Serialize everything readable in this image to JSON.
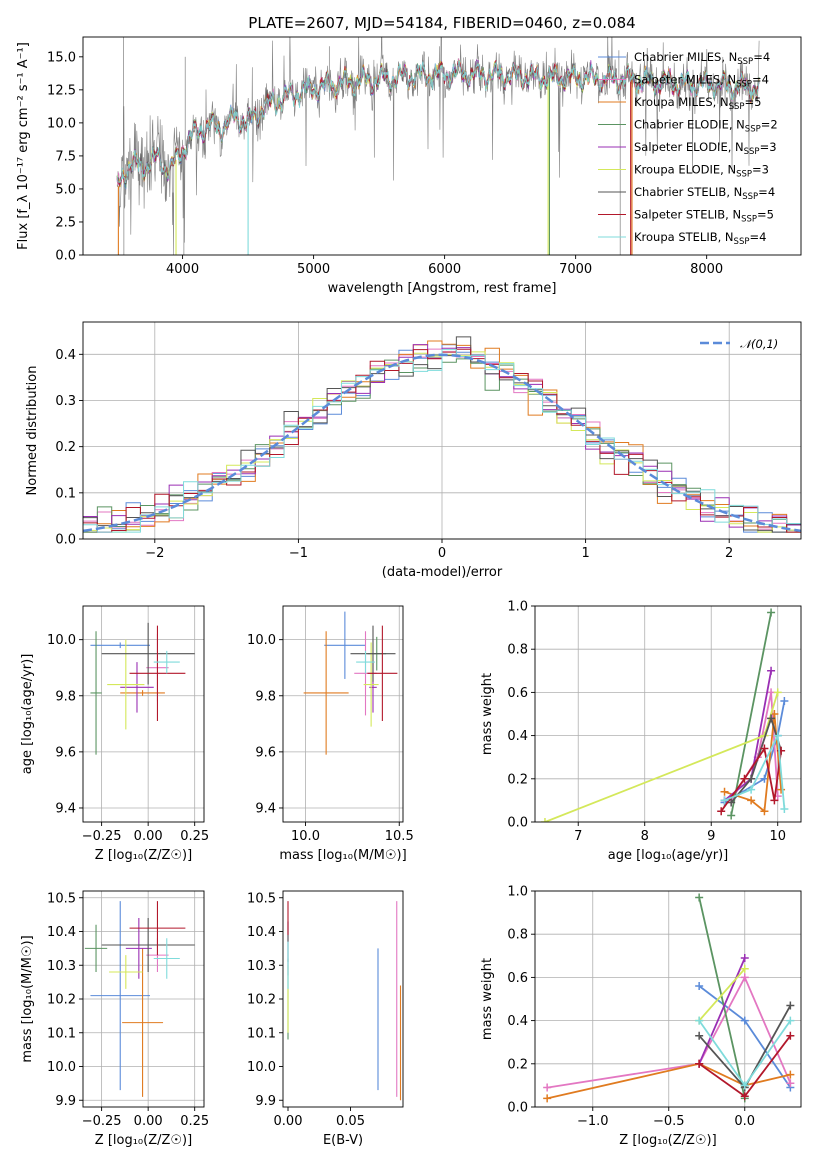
{
  "colors": {
    "Chabrier MILES": "#5b8bd9",
    "Salpeter MILES": "#e377c2",
    "Kroupa MILES": "#e07b20",
    "Chabrier ELODIE": "#5b9462",
    "Salpeter ELODIE": "#9a2fb4",
    "Kroupa ELODIE": "#d4e85a",
    "Chabrier STELIB": "#555555",
    "Salpeter STELIB": "#b2182b",
    "Kroupa STELIB": "#7fdbdb",
    "observed": "#808080",
    "gaussian": "#5b8bd9"
  },
  "chart_data": [
    {
      "id": "spectrum",
      "type": "line",
      "title": "PLATE=2607, MJD=54184, FIBERID=0460, z=0.084",
      "xlabel": "wavelength [Angstrom, rest frame]",
      "ylabel": "Flux [f_λ 10⁻¹⁷ erg cm⁻² s⁻¹ A⁻¹]",
      "xlim": [
        3240,
        8720
      ],
      "ylim": [
        0,
        16.5
      ],
      "xticks": [
        4000,
        5000,
        6000,
        7000,
        8000
      ],
      "yticks": [
        0.0,
        2.5,
        5.0,
        7.5,
        10.0,
        12.5,
        15.0
      ],
      "legend_position": "right",
      "continuum": {
        "x": [
          3500,
          3600,
          3700,
          3800,
          3900,
          4000,
          4100,
          4200,
          4300,
          4400,
          4500,
          4600,
          4700,
          4800,
          4900,
          5000,
          5200,
          5400,
          5600,
          5800,
          6000,
          6200,
          6400,
          6600,
          6800,
          7000,
          7200,
          7400,
          7600,
          7800,
          8000,
          8200,
          8400
        ],
        "y": [
          5.0,
          7.0,
          6.6,
          7.4,
          6.4,
          8.0,
          9.3,
          9.8,
          9.6,
          10.5,
          10.0,
          11.0,
          11.6,
          12.0,
          12.4,
          12.6,
          13.0,
          13.2,
          13.4,
          13.6,
          13.7,
          13.7,
          13.6,
          13.5,
          13.4,
          13.4,
          13.3,
          13.3,
          13.1,
          13.0,
          12.9,
          12.8,
          12.6
        ]
      },
      "series": [
        {
          "name": "Chabrier MILES",
          "nssp": "4"
        },
        {
          "name": "Salpeter MILES",
          "nssp": "4"
        },
        {
          "name": "Kroupa MILES",
          "nssp": "5"
        },
        {
          "name": "Chabrier ELODIE",
          "nssp": "2"
        },
        {
          "name": "Salpeter ELODIE",
          "nssp": "3"
        },
        {
          "name": "Kroupa ELODIE",
          "nssp": "3"
        },
        {
          "name": "Chabrier STELIB",
          "nssp": "4"
        },
        {
          "name": "Salpeter STELIB",
          "nssp": "5"
        },
        {
          "name": "Kroupa STELIB",
          "nssp": "4"
        }
      ]
    },
    {
      "id": "residuals",
      "type": "histogram",
      "xlabel": "(data-model)/error",
      "ylabel": "Normed distribution",
      "xlim": [
        -2.5,
        2.5
      ],
      "ylim": [
        0,
        0.47
      ],
      "xticks": [
        -2,
        -1,
        0,
        1,
        2
      ],
      "yticks": [
        0.0,
        0.1,
        0.2,
        0.3,
        0.4
      ],
      "legend": "𝒩(0,1)",
      "legend_position": "top-right",
      "bins": {
        "start": -2.5,
        "width": 0.1,
        "count": 50
      },
      "grid": true
    },
    {
      "id": "age_vs_Z",
      "type": "errorbar",
      "xlabel": "Z [log₁₀(Z/Z☉)]",
      "ylabel": "age  [log₁₀(age/yr)]",
      "xlim": [
        -0.35,
        0.3
      ],
      "ylim": [
        9.35,
        10.12
      ],
      "xticks": [
        -0.25,
        0.0,
        0.25
      ],
      "xticklabels": [
        "−0.25",
        "0.00",
        "0.25"
      ],
      "yticks": [
        9.4,
        9.6,
        9.8,
        10.0
      ],
      "grid": true,
      "points": [
        {
          "name": "Chabrier MILES",
          "x": -0.15,
          "xerr": 0.16,
          "y": 9.98,
          "yerr": 0.01
        },
        {
          "name": "Salpeter MILES",
          "x": 0.05,
          "xerr": 0.06,
          "y": 9.9,
          "yerr": 0.12
        },
        {
          "name": "Kroupa MILES",
          "x": -0.03,
          "xerr": 0.12,
          "y": 9.81,
          "yerr": 0.01
        },
        {
          "name": "Chabrier ELODIE",
          "x": -0.28,
          "xerr": 0.03,
          "y": 9.81,
          "yerr": 0.22
        },
        {
          "name": "Salpeter ELODIE",
          "x": -0.06,
          "xerr": 0.09,
          "y": 9.83,
          "yerr": 0.09
        },
        {
          "name": "Kroupa ELODIE",
          "x": -0.12,
          "xerr": 0.1,
          "y": 9.84,
          "yerr": 0.16
        },
        {
          "name": "Chabrier STELIB",
          "x": 0.0,
          "xerr": 0.25,
          "y": 9.95,
          "yerr": 0.11
        },
        {
          "name": "Salpeter STELIB",
          "x": 0.05,
          "xerr": 0.15,
          "y": 9.88,
          "yerr": 0.17
        },
        {
          "name": "Kroupa STELIB",
          "x": 0.1,
          "xerr": 0.07,
          "y": 9.92,
          "yerr": 0.04
        }
      ]
    },
    {
      "id": "age_vs_mass",
      "type": "errorbar",
      "xlabel": "mass [log₁₀(M/M☉)]",
      "xlim": [
        9.88,
        10.52
      ],
      "ylim": [
        9.35,
        10.12
      ],
      "xticks": [
        10.0,
        10.5
      ],
      "xticklabels": [
        "10.0",
        "10.5"
      ],
      "yticks": [
        9.4,
        9.6,
        9.8,
        10.0
      ],
      "grid": true,
      "points": [
        {
          "name": "Chabrier MILES",
          "x": 10.21,
          "xerr": 0.11,
          "y": 9.98,
          "yerr": 0.12
        },
        {
          "name": "Salpeter MILES",
          "x": 10.32,
          "xerr": 0.06,
          "y": 9.88,
          "yerr": 0.15
        },
        {
          "name": "Kroupa MILES",
          "x": 10.11,
          "xerr": 0.12,
          "y": 9.81,
          "yerr": 0.22
        },
        {
          "name": "Chabrier ELODIE",
          "x": 10.38,
          "xerr": 0.05,
          "y": 9.95,
          "yerr": 0.06
        },
        {
          "name": "Salpeter ELODIE",
          "x": 10.36,
          "xerr": 0.02,
          "y": 9.83,
          "yerr": 0.09
        },
        {
          "name": "Kroupa ELODIE",
          "x": 10.35,
          "xerr": 0.04,
          "y": 9.84,
          "yerr": 0.15
        },
        {
          "name": "Chabrier STELIB",
          "x": 10.36,
          "xerr": 0.12,
          "y": 9.95,
          "yerr": 0.1
        },
        {
          "name": "Salpeter STELIB",
          "x": 10.41,
          "xerr": 0.08,
          "y": 9.88,
          "yerr": 0.17
        },
        {
          "name": "Kroupa STELIB",
          "x": 10.32,
          "xerr": 0.05,
          "y": 9.92,
          "yerr": 0.04
        }
      ]
    },
    {
      "id": "weight_vs_age",
      "type": "line",
      "xlabel": "age  [log₁₀(age/yr)]",
      "ylabel": "mass weight",
      "xlim": [
        6.35,
        10.35
      ],
      "ylim": [
        0,
        1.0
      ],
      "xticks": [
        7,
        8,
        9,
        10
      ],
      "yticks": [
        0.0,
        0.2,
        0.4,
        0.6,
        0.8,
        1.0
      ],
      "grid": true,
      "series": [
        {
          "name": "Chabrier MILES",
          "x": [
            9.2,
            9.8,
            10.0,
            10.1
          ],
          "y": [
            0.09,
            0.2,
            0.4,
            0.56
          ]
        },
        {
          "name": "Salpeter MILES",
          "x": [
            9.3,
            9.7,
            9.9,
            10.0
          ],
          "y": [
            0.1,
            0.3,
            0.6,
            0.12
          ]
        },
        {
          "name": "Kroupa MILES",
          "x": [
            9.2,
            9.6,
            9.8,
            9.95,
            10.05
          ],
          "y": [
            0.14,
            0.1,
            0.05,
            0.5,
            0.15
          ]
        },
        {
          "name": "Chabrier ELODIE",
          "x": [
            9.3,
            9.9
          ],
          "y": [
            0.03,
            0.97
          ]
        },
        {
          "name": "Salpeter ELODIE",
          "x": [
            9.2,
            9.6,
            9.9
          ],
          "y": [
            0.1,
            0.2,
            0.7
          ]
        },
        {
          "name": "Kroupa ELODIE",
          "x": [
            6.5,
            9.8,
            10.0
          ],
          "y": [
            0.0,
            0.4,
            0.6
          ]
        },
        {
          "name": "Chabrier STELIB",
          "x": [
            9.3,
            9.6,
            9.9,
            10.05
          ],
          "y": [
            0.09,
            0.2,
            0.48,
            0.33
          ]
        },
        {
          "name": "Salpeter STELIB",
          "x": [
            9.15,
            9.5,
            9.8,
            9.95,
            10.05
          ],
          "y": [
            0.05,
            0.2,
            0.34,
            0.1,
            0.33
          ]
        },
        {
          "name": "Kroupa STELIB",
          "x": [
            9.2,
            9.6,
            10.0,
            10.1
          ],
          "y": [
            0.1,
            0.15,
            0.4,
            0.06
          ]
        }
      ]
    },
    {
      "id": "mass_vs_Z",
      "type": "errorbar",
      "xlabel": "Z [log₁₀(Z/Z☉)]",
      "ylabel": "mass [log₁₀(M/M☉)]",
      "xlim": [
        -0.35,
        0.3
      ],
      "ylim": [
        9.88,
        10.52
      ],
      "xticks": [
        -0.25,
        0.0,
        0.25
      ],
      "xticklabels": [
        "−0.25",
        "0.00",
        "0.25"
      ],
      "yticks": [
        9.9,
        10.0,
        10.1,
        10.2,
        10.3,
        10.4,
        10.5
      ],
      "grid": true,
      "points": [
        {
          "name": "Chabrier MILES",
          "x": -0.15,
          "xerr": 0.16,
          "y": 10.21,
          "yerr": 0.28
        },
        {
          "name": "Salpeter MILES",
          "x": 0.05,
          "xerr": 0.06,
          "y": 10.33,
          "yerr": 0.05
        },
        {
          "name": "Kroupa MILES",
          "x": -0.03,
          "xerr": 0.11,
          "y": 10.13,
          "yerr": 0.22
        },
        {
          "name": "Chabrier ELODIE",
          "x": -0.28,
          "xerr": 0.06,
          "y": 10.35,
          "yerr": 0.07
        },
        {
          "name": "Salpeter ELODIE",
          "x": -0.05,
          "xerr": 0.07,
          "y": 10.35,
          "yerr": 0.09
        },
        {
          "name": "Kroupa ELODIE",
          "x": -0.12,
          "xerr": 0.09,
          "y": 10.28,
          "yerr": 0.05
        },
        {
          "name": "Chabrier STELIB",
          "x": 0.0,
          "xerr": 0.25,
          "y": 10.36,
          "yerr": 0.08
        },
        {
          "name": "Salpeter STELIB",
          "x": 0.05,
          "xerr": 0.15,
          "y": 10.41,
          "yerr": 0.08
        },
        {
          "name": "Kroupa STELIB",
          "x": 0.1,
          "xerr": 0.07,
          "y": 10.32,
          "yerr": 0.06
        }
      ]
    },
    {
      "id": "mass_vs_ebv",
      "type": "errorbar",
      "xlabel": "E(B-V)",
      "xlim": [
        -0.004,
        0.092
      ],
      "ylim": [
        9.88,
        10.52
      ],
      "xticks": [
        0.0,
        0.05
      ],
      "xticklabels": [
        "0.00",
        "0.05"
      ],
      "yticks": [
        9.9,
        10.0,
        10.1,
        10.2,
        10.3,
        10.4,
        10.5
      ],
      "grid": false,
      "points": [
        {
          "name": "Chabrier MILES",
          "x": 0.072,
          "xerr": 0.0,
          "y": 10.14,
          "yerr": 0.21
        },
        {
          "name": "Salpeter MILES",
          "x": 0.087,
          "xerr": 0.0,
          "y": 10.2,
          "yerr": 0.29
        },
        {
          "name": "Kroupa MILES",
          "x": 0.09,
          "xerr": 0.0,
          "y": 10.07,
          "yerr": 0.17
        },
        {
          "name": "Chabrier ELODIE",
          "x": 0.0,
          "xerr": 0.0,
          "y": 10.2,
          "yerr": 0.12
        },
        {
          "name": "Salpeter ELODIE",
          "x": 0.0,
          "xerr": 0.0,
          "y": 10.35,
          "yerr": 0.08
        },
        {
          "name": "Kroupa ELODIE",
          "x": 0.0,
          "xerr": 0.0,
          "y": 10.2,
          "yerr": 0.1
        },
        {
          "name": "Chabrier STELIB",
          "x": 0.0,
          "xerr": 0.0,
          "y": 10.37,
          "yerr": 0.06
        },
        {
          "name": "Salpeter STELIB",
          "x": 0.0,
          "xerr": 0.0,
          "y": 10.44,
          "yerr": 0.05
        },
        {
          "name": "Kroupa STELIB",
          "x": 0.0,
          "xerr": 0.0,
          "y": 10.3,
          "yerr": 0.07
        }
      ]
    },
    {
      "id": "weight_vs_Z",
      "type": "line",
      "xlabel": "Z [log₁₀(Z/Z☉)]",
      "ylabel": "mass weight",
      "xlim": [
        -1.38,
        0.37
      ],
      "ylim": [
        0,
        1.0
      ],
      "xticks": [
        -1.0,
        -0.5,
        0.0
      ],
      "xticklabels": [
        "−1.0",
        "−0.5",
        "0.0"
      ],
      "yticks": [
        0.0,
        0.2,
        0.4,
        0.6,
        0.8,
        1.0
      ],
      "grid": true,
      "series": [
        {
          "name": "Chabrier MILES",
          "x": [
            -0.3,
            0.0,
            0.3
          ],
          "y": [
            0.56,
            0.4,
            0.09
          ]
        },
        {
          "name": "Salpeter MILES",
          "x": [
            -1.3,
            -0.3,
            0.0,
            0.3
          ],
          "y": [
            0.09,
            0.2,
            0.6,
            0.11
          ]
        },
        {
          "name": "Kroupa MILES",
          "x": [
            -1.3,
            -0.3,
            0.0,
            0.3
          ],
          "y": [
            0.04,
            0.2,
            0.1,
            0.15
          ]
        },
        {
          "name": "Chabrier ELODIE",
          "x": [
            -0.3,
            0.0
          ],
          "y": [
            0.97,
            0.04
          ]
        },
        {
          "name": "Salpeter ELODIE",
          "x": [
            -0.3,
            0.0
          ],
          "y": [
            0.2,
            0.69
          ]
        },
        {
          "name": "Kroupa ELODIE",
          "x": [
            -0.3,
            0.0
          ],
          "y": [
            0.4,
            0.64
          ]
        },
        {
          "name": "Chabrier STELIB",
          "x": [
            -0.3,
            0.0,
            0.3
          ],
          "y": [
            0.33,
            0.09,
            0.47
          ]
        },
        {
          "name": "Salpeter STELIB",
          "x": [
            -0.3,
            0.0,
            0.3
          ],
          "y": [
            0.2,
            0.05,
            0.33
          ]
        },
        {
          "name": "Kroupa STELIB",
          "x": [
            -0.3,
            0.0,
            0.3
          ],
          "y": [
            0.4,
            0.1,
            0.4
          ]
        }
      ]
    }
  ]
}
